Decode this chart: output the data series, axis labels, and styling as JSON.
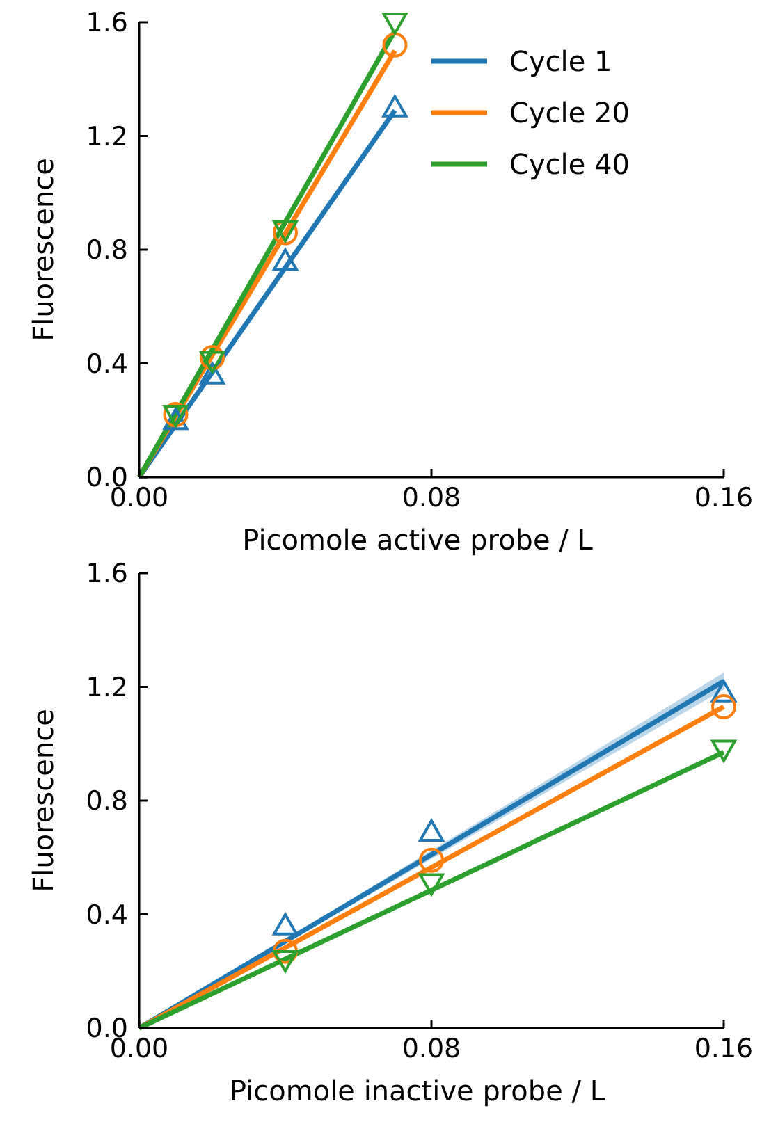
{
  "chart_data": [
    {
      "type": "line",
      "xlabel": "Picomole active probe / L",
      "ylabel": "Fluorescence",
      "xlim": [
        0,
        0.16
      ],
      "xticks": [
        {
          "value": 0,
          "label": "0.00"
        },
        {
          "value": 0.08,
          "label": "0.08"
        },
        {
          "value": 0.16,
          "label": "0.16"
        }
      ],
      "ylim": [
        0,
        1.6
      ],
      "yticks": [
        {
          "value": 0,
          "label": "0.0"
        },
        {
          "value": 0.4,
          "label": "0.4"
        },
        {
          "value": 0.8,
          "label": "0.8"
        },
        {
          "value": 1.2,
          "label": "1.2"
        },
        {
          "value": 1.6,
          "label": "1.6"
        }
      ],
      "legend": "top right",
      "grid": false,
      "series": [
        {
          "name": "Cycle 1",
          "color": "#1f77b4",
          "type": "line",
          "marker": "none",
          "x": [
            0,
            0.07
          ],
          "values": [
            0,
            1.29
          ]
        },
        {
          "name": "Cycle 20",
          "color": "#ff7f0e",
          "type": "line",
          "marker": "none",
          "x": [
            0,
            0.07
          ],
          "values": [
            0,
            1.5
          ]
        },
        {
          "name": "Cycle 40",
          "color": "#2ca02c",
          "type": "line",
          "marker": "none",
          "x": [
            0,
            0.07
          ],
          "values": [
            0,
            1.57
          ]
        },
        {
          "color": "#1f77b4",
          "type": "scatter",
          "marker": "triangle",
          "x": [
            0.01,
            0.02,
            0.04,
            0.07
          ],
          "values": [
            0.2,
            0.36,
            0.76,
            1.3
          ]
        },
        {
          "color": "#ff7f0e",
          "type": "scatter",
          "marker": "circle",
          "x": [
            0.01,
            0.02,
            0.04,
            0.07
          ],
          "values": [
            0.22,
            0.42,
            0.86,
            1.52
          ]
        },
        {
          "color": "#2ca02c",
          "type": "scatter",
          "marker": "triangle-down",
          "x": [
            0.01,
            0.02,
            0.04,
            0.07
          ],
          "values": [
            0.22,
            0.41,
            0.87,
            1.6
          ]
        }
      ]
    },
    {
      "type": "line",
      "xlabel": "Picomole inactive probe / L",
      "ylabel": "Fluorescence",
      "xlim": [
        0,
        0.16
      ],
      "xticks": [
        {
          "value": 0,
          "label": "0.00"
        },
        {
          "value": 0.08,
          "label": "0.08"
        },
        {
          "value": 0.16,
          "label": "0.16"
        }
      ],
      "ylim": [
        0,
        1.6
      ],
      "yticks": [
        {
          "value": 0,
          "label": "0.0"
        },
        {
          "value": 0.4,
          "label": "0.4"
        },
        {
          "value": 0.8,
          "label": "0.8"
        },
        {
          "value": 1.2,
          "label": "1.2"
        },
        {
          "value": 1.6,
          "label": "1.6"
        }
      ],
      "legend": false,
      "grid": false,
      "series": [
        {
          "color": "#1f77b4",
          "type": "line",
          "marker": "none",
          "x": [
            0,
            0.16
          ],
          "values": [
            0,
            1.22
          ],
          "lower": [
            0,
            1.19
          ],
          "upper": [
            0,
            1.25
          ]
        },
        {
          "color": "#ff7f0e",
          "type": "line",
          "marker": "none",
          "x": [
            0,
            0.16
          ],
          "values": [
            0,
            1.13
          ]
        },
        {
          "color": "#2ca02c",
          "type": "line",
          "marker": "none",
          "x": [
            0,
            0.16
          ],
          "values": [
            0,
            0.97
          ]
        },
        {
          "color": "#1f77b4",
          "type": "scatter",
          "marker": "triangle",
          "x": [
            0.04,
            0.08,
            0.16
          ],
          "values": [
            0.36,
            0.69,
            1.18
          ]
        },
        {
          "color": "#ff7f0e",
          "type": "scatter",
          "marker": "circle",
          "x": [
            0.04,
            0.08,
            0.16
          ],
          "values": [
            0.27,
            0.59,
            1.13
          ]
        },
        {
          "color": "#2ca02c",
          "type": "scatter",
          "marker": "triangle-down",
          "x": [
            0.04,
            0.08,
            0.16
          ],
          "values": [
            0.24,
            0.51,
            0.98
          ]
        }
      ]
    }
  ]
}
